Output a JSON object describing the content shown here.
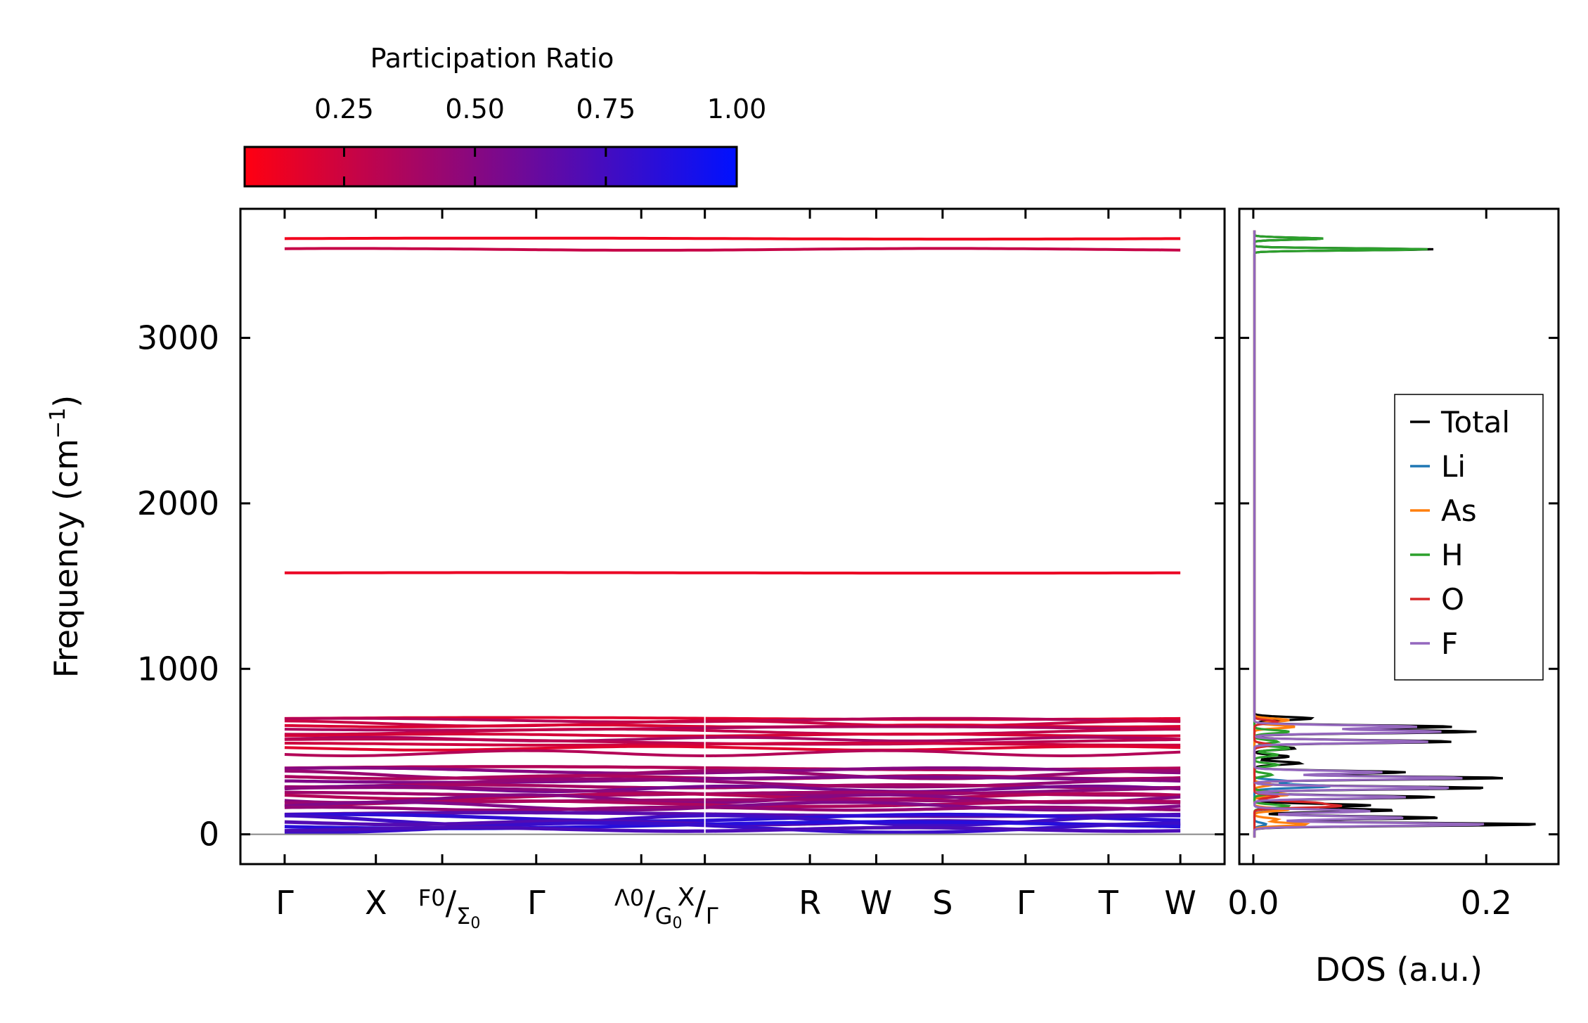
{
  "chart_data": [
    {
      "type": "line",
      "name": "phonon-band-structure",
      "ylabel": "Frequency (cm",
      "ylabel_sup": "−1",
      "ylabel_close": ")",
      "ylim": [
        -180,
        3780
      ],
      "yticks": [
        0,
        1000,
        2000,
        3000
      ],
      "ytick_labels": [
        "0",
        "1000",
        "2000",
        "3000"
      ],
      "xlim": [
        -0.08,
        1.7
      ],
      "kpoints": [
        {
          "label": "Γ",
          "x": 0.0
        },
        {
          "label": "X",
          "x": 0.165
        },
        {
          "label": "F₀/Σ₀",
          "x": 0.285
        },
        {
          "label": "Γ",
          "x": 0.455
        },
        {
          "label": "Λ₀/G₀",
          "x": 0.645
        },
        {
          "label": "X/Γ",
          "x": 0.76
        },
        {
          "label": "R",
          "x": 0.95
        },
        {
          "label": "W",
          "x": 1.07
        },
        {
          "label": "S",
          "x": 1.19
        },
        {
          "label": "Γ",
          "x": 1.34
        },
        {
          "label": "T",
          "x": 1.49
        },
        {
          "label": "W",
          "x": 1.62
        }
      ],
      "kpoint_tick_labels": [
        "Γ",
        "X",
        "F",
        "0",
        "Σ",
        "0",
        "Γ",
        "Λ",
        "0",
        "G",
        "0",
        "X",
        "Γ",
        "R",
        "W",
        "S",
        "Γ",
        "T",
        "W"
      ],
      "segment_break": 0.76,
      "bands": {
        "high_modes": [
          3600,
          3535
        ],
        "bend_mode": [
          1580
        ],
        "optical_modes": [
          700,
          690,
          670,
          655,
          640,
          620,
          600,
          575,
          560,
          545,
          520,
          490
        ],
        "mid_modes": [
          400,
          385,
          360,
          345,
          330,
          310,
          290,
          275,
          260,
          245,
          230,
          215,
          200,
          185,
          170,
          155
        ],
        "low_modes": [
          120,
          100,
          85,
          70,
          55,
          40,
          30
        ]
      },
      "colorbar": {
        "title": "Participation Ratio",
        "ticks": [
          0.25,
          0.5,
          0.75,
          1.0
        ],
        "tick_labels": [
          "0.25",
          "0.50",
          "0.75",
          "1.00"
        ],
        "range": [
          0.06,
          1.0
        ],
        "color_low": "#ff0011",
        "color_high": "#0011ff"
      }
    },
    {
      "type": "line",
      "name": "phonon-dos",
      "xlabel": "DOS (a.u.)",
      "xlim": [
        -0.012,
        0.262
      ],
      "xticks": [
        0.0,
        0.2
      ],
      "xtick_labels": [
        "0.0",
        "0.2"
      ],
      "ylim": [
        -180,
        3780
      ],
      "legend": "right",
      "series": [
        {
          "name": "Total",
          "color": "#000000",
          "peaks": [
            [
              60,
              0.245
            ],
            [
              100,
              0.16
            ],
            [
              145,
              0.12
            ],
            [
              175,
              0.1
            ],
            [
              225,
              0.155
            ],
            [
              280,
              0.2
            ],
            [
              340,
              0.215
            ],
            [
              375,
              0.13
            ],
            [
              430,
              0.04
            ],
            [
              470,
              0.03
            ],
            [
              520,
              0.035
            ],
            [
              560,
              0.17
            ],
            [
              620,
              0.19
            ],
            [
              650,
              0.17
            ],
            [
              700,
              0.05
            ],
            [
              3535,
              0.155
            ],
            [
              3600,
              0.06
            ]
          ]
        },
        {
          "name": "Li",
          "color": "#1f77b4",
          "peaks": [
            [
              60,
              0.01
            ],
            [
              150,
              0.02
            ],
            [
              290,
              0.065
            ],
            [
              320,
              0.03
            ]
          ]
        },
        {
          "name": "As",
          "color": "#ff7f0e",
          "peaks": [
            [
              60,
              0.045
            ],
            [
              90,
              0.02
            ],
            [
              150,
              0.03
            ],
            [
              240,
              0.03
            ],
            [
              300,
              0.015
            ],
            [
              650,
              0.035
            ],
            [
              690,
              0.03
            ]
          ]
        },
        {
          "name": "H",
          "color": "#2ca02c",
          "peaks": [
            [
              170,
              0.03
            ],
            [
              250,
              0.02
            ],
            [
              360,
              0.015
            ],
            [
              420,
              0.02
            ],
            [
              480,
              0.02
            ],
            [
              520,
              0.03
            ],
            [
              560,
              0.02
            ],
            [
              620,
              0.03
            ],
            [
              3535,
              0.15
            ],
            [
              3600,
              0.06
            ]
          ]
        },
        {
          "name": "O",
          "color": "#d62728",
          "peaks": [
            [
              170,
              0.07
            ],
            [
              190,
              0.05
            ],
            [
              230,
              0.02
            ],
            [
              540,
              0.015
            ],
            [
              680,
              0.02
            ]
          ]
        },
        {
          "name": "F",
          "color": "#9467bd",
          "peaks": [
            [
              60,
              0.2
            ],
            [
              100,
              0.13
            ],
            [
              140,
              0.1
            ],
            [
              225,
              0.13
            ],
            [
              280,
              0.17
            ],
            [
              340,
              0.18
            ],
            [
              375,
              0.11
            ],
            [
              560,
              0.15
            ],
            [
              620,
              0.16
            ],
            [
              650,
              0.14
            ]
          ]
        }
      ]
    }
  ]
}
